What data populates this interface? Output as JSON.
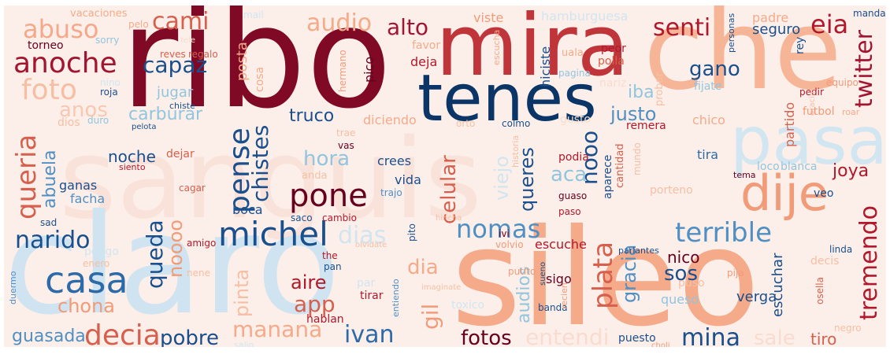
{
  "palette": {
    "background": "#fcefe9",
    "scheme": "RdBu (red-blue diverging)"
  },
  "words": {
    "sanguis": "sanguis",
    "claro": "claro",
    "sileo": "sileo",
    "ribo": "ribo",
    "che": "che",
    "mira": "mira",
    "tenes": "tenes",
    "pasa": "pasa",
    "dije": "dije",
    "anoche": "anoche",
    "foto": "foto",
    "abuso": "abuso",
    "cami": "cami",
    "audio": "audio",
    "alto": "alto",
    "senti": "senti",
    "eia": "eia",
    "capaz": "capaz",
    "gano": "gano",
    "twitter": "twitter",
    "queria": "queria",
    "abuela": "abuela",
    "noche": "noche",
    "pense": "pense",
    "chistes": "chistes",
    "truco": "truco",
    "hora": "hora",
    "pone": "pone",
    "michel": "michel",
    "narido": "narido",
    "casa": "casa",
    "chona": "chona",
    "queda": "queda",
    "noooo": "noooo",
    "nomas": "nomas",
    "dias": "dias",
    "celular": "celular",
    "queres": "queres",
    "aca": "aca",
    "justo": "justo",
    "nooo": "nooo",
    "terrible": "terrible",
    "tremendo": "tremendo",
    "joya": "joya",
    "plata": "plata",
    "gracia": "gracia",
    "sos": "sos",
    "nico": "nico",
    "verga": "verga",
    "queso": "queso",
    "escuchar": "escuchar",
    "aire": "aire",
    "app": "app",
    "decia": "decia",
    "pobre": "pobre",
    "manana": "manana",
    "ivan": "ivan",
    "fotos": "fotos",
    "mina": "mina",
    "guasada": "guasada",
    "entendi": "entendi",
    "sale": "sale",
    "tiro": "tiro",
    "gil": "gil",
    "audios": "audios",
    "pinta": "pinta",
    "posta": "posta",
    "carburar": "carburar",
    "jugar": "jugar",
    "anos": "anos",
    "boca": "boca",
    "viejo": "viejo",
    "ganas": "ganas",
    "facha": "facha",
    "vida": "vida",
    "crees": "crees",
    "dia": "dia",
    "escuche": "escuche",
    "partido": "partido",
    "iba": "iba",
    "chico": "chico",
    "tira": "tira",
    "futbol": "futbol",
    "remera": "remera",
    "vacaciones": "vacaciones",
    "pelo": "pelo",
    "mail": "mail",
    "viste": "viste",
    "hamburguesa": "hamburguesa",
    "padre": "padre",
    "manda": "manda",
    "torneo": "torneo",
    "sorry": "sorry",
    "tele": "tele",
    "reves": "reves",
    "regalo": "regalo",
    "cosa": "cosa",
    "favor": "favor",
    "deja": "deja",
    "hiciste": "hiciste",
    "escucha": "escucha",
    "peor": "peor",
    "polla": "polla",
    "seguro": "seguro",
    "pagina": "pagina",
    "personas": "personas",
    "rey": "rey",
    "pedir": "pedir",
    "equipo": "equipo",
    "fijate": "fijate",
    "probar": "probar",
    "roja": "roja",
    "nino": "nino",
    "chiste": "chiste",
    "hermano": "hermano",
    "pico": "pico",
    "pelota": "pelota",
    "duro": "duro",
    "dios": "dios",
    "diciendo": "diciendo",
    "orto": "orto",
    "colmo": "colmo",
    "gusto": "gusto",
    "historia": "historia",
    "trae": "trae",
    "vas": "vas",
    "roar": "roar",
    "dejar": "dejar",
    "siento": "siento",
    "cagar": "cagar",
    "anda": "anda",
    "trajo": "trajo",
    "podia": "podia",
    "aparece": "aparece",
    "cantidad": "cantidad",
    "mundo": "mundo",
    "loco": "loco",
    "blanca": "blanca",
    "tema": "tema",
    "veo": "veo",
    "porteno": "porteno",
    "sad": "sad",
    "saco": "saco",
    "cambio": "cambio",
    "hincha": "hincha",
    "paso": "paso",
    "guaso": "guaso",
    "ivi": "ivi",
    "volvio": "volvio",
    "pito": "pito",
    "linda": "linda",
    "decis": "decis",
    "amigo": "amigo",
    "olvidate": "olvidate",
    "the": "the",
    "pan": "pan",
    "pongo": "pongo",
    "enero": "enero",
    "parlantes": "parlantes",
    "putito": "putito",
    "nene": "nene",
    "par": "par",
    "imaginate": "imaginate",
    "sueno": "sueno",
    "sigo": "sigo",
    "puso": "puso",
    "pija": "pija",
    "duermo": "duermo",
    "tirar": "tirar",
    "entiendo": "entiendo",
    "toxico": "toxico",
    "banda": "banda",
    "recien": "recien",
    "osella": "osella",
    "hablan": "hablan",
    "negro": "negro",
    "puesto": "puesto",
    "salio": "salio",
    "choli": "choli",
    "gracias": "gracias",
    "ano": "ano",
    "alguno": "alguno",
    "cita": "cita",
    "uala": "uala",
    "nariz": "nariz",
    "pode": "pode",
    "rara": "rara"
  }
}
